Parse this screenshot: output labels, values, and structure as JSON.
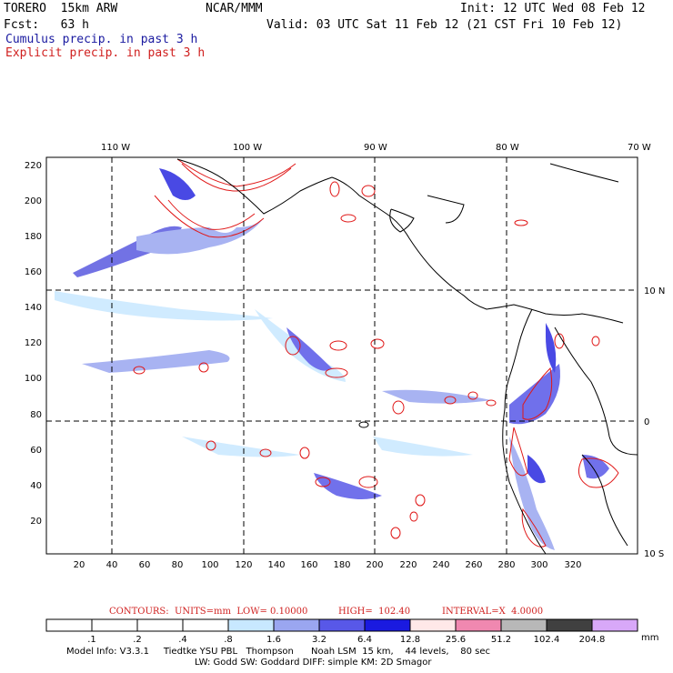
{
  "header": {
    "model": "TORERO  15km ARW",
    "org": "NCAR/MMM",
    "init": "Init: 12 UTC Wed 08 Feb 12",
    "fcst": "Fcst:   63 h",
    "valid": "Valid: 03 UTC Sat 11 Feb 12 (21 CST Fri 10 Feb 12)",
    "cumulus": "Cumulus precip. in past 3 h",
    "explicit": "Explicit precip. in past 3 h"
  },
  "axes": {
    "top_lon": [
      "110 W",
      "100 W",
      "90 W",
      "80 W",
      "70 W"
    ],
    "right_lat": [
      "10 N",
      "0",
      "10 S"
    ],
    "x_ticks": [
      "20",
      "40",
      "60",
      "80",
      "100",
      "120",
      "140",
      "160",
      "180",
      "200",
      "220",
      "240",
      "260",
      "280",
      "300",
      "320"
    ],
    "y_ticks": [
      "20",
      "40",
      "60",
      "80",
      "100",
      "120",
      "140",
      "160",
      "180",
      "200",
      "220"
    ]
  },
  "legend": {
    "contours": "CONTOURS:  UNITS=mm  LOW= 0.10000",
    "high": "HIGH=  102.40",
    "interval": "INTERVAL=X  4.0000",
    "unit": "mm",
    "bins": [
      {
        "label": ".1",
        "color": "#ffffff"
      },
      {
        "label": ".2",
        "color": "#ffffff"
      },
      {
        "label": ".4",
        "color": "#ffffff"
      },
      {
        "label": ".8",
        "color": "#ffffff"
      },
      {
        "label": "1.6",
        "color": "#c8e8ff"
      },
      {
        "label": "3.2",
        "color": "#9aa6f0"
      },
      {
        "label": "6.4",
        "color": "#5858e8"
      },
      {
        "label": "12.8",
        "color": "#1a1ae0"
      },
      {
        "label": "25.6",
        "color": "#ffe8e8"
      },
      {
        "label": "51.2",
        "color": "#f088b0"
      },
      {
        "label": "102.4",
        "color": "#b8b8b8"
      },
      {
        "label": "204.8",
        "color": "#404040"
      },
      {
        "label": "",
        "color": "#d8a8f8"
      }
    ]
  },
  "model_info": {
    "line1": "Model Info: V3.3.1     Tiedtke YSU PBL   Thompson      Noah LSM  15 km,    44 levels,    80 sec",
    "line2": "LW: Godd SW: Goddard DIFF: simple KM: 2D Smagor"
  }
}
